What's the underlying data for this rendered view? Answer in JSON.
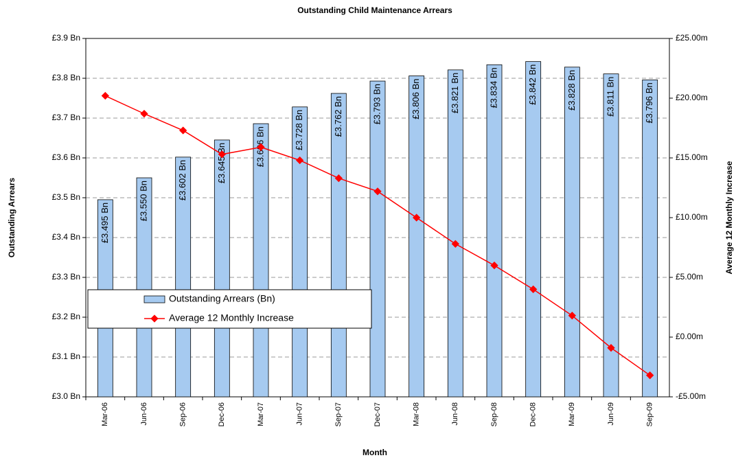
{
  "chart_data": {
    "type": "bar_line",
    "title": "Outstanding Child Maintenance Arrears",
    "x_label": "Month",
    "y_label": "Outstanding Arrears",
    "y2_label": "Average 12 Monthly Increase",
    "categories": [
      "Mar-06",
      "Jun-06",
      "Sep-06",
      "Dec-06",
      "Mar-07",
      "Jun-07",
      "Sep-07",
      "Dec-07",
      "Mar-08",
      "Jun-08",
      "Sep-08",
      "Dec-08",
      "Mar-09",
      "Jun-09",
      "Sep-09"
    ],
    "series": [
      {
        "name": "Outstanding Arrears (Bn)",
        "type": "bar",
        "color": "#a6caf0",
        "values": [
          3.495,
          3.55,
          3.602,
          3.645,
          3.686,
          3.728,
          3.762,
          3.793,
          3.806,
          3.821,
          3.834,
          3.842,
          3.828,
          3.811,
          3.796
        ],
        "value_labels": [
          "£3.495 Bn",
          "£3.550 Bn",
          "£3.602 Bn",
          "£3.645 Bn",
          "£3.686 Bn",
          "£3.728 Bn",
          "£3.762 Bn",
          "£3.793 Bn",
          "£3.806 Bn",
          "£3.821 Bn",
          "£3.834 Bn",
          "£3.842 Bn",
          "£3.828 Bn",
          "£3.811 Bn",
          "£3.796 Bn"
        ]
      },
      {
        "name": "Average 12 Monthly Increase",
        "type": "line",
        "axis": "y2",
        "color": "#ff0000",
        "values": [
          20.2,
          18.7,
          17.3,
          15.3,
          15.9,
          14.8,
          13.3,
          12.2,
          10.0,
          7.8,
          6.0,
          4.0,
          1.8,
          -0.9,
          -3.2
        ]
      }
    ],
    "ylim": [
      3.0,
      3.9
    ],
    "yticks": [
      {
        "value": 3.0,
        "label": "£3.0 Bn"
      },
      {
        "value": 3.1,
        "label": "£3.1 Bn"
      },
      {
        "value": 3.2,
        "label": "£3.2 Bn"
      },
      {
        "value": 3.3,
        "label": "£3.3 Bn"
      },
      {
        "value": 3.4,
        "label": "£3.4 Bn"
      },
      {
        "value": 3.5,
        "label": "£3.5 Bn"
      },
      {
        "value": 3.6,
        "label": "£3.6 Bn"
      },
      {
        "value": 3.7,
        "label": "£3.7 Bn"
      },
      {
        "value": 3.8,
        "label": "£3.8 Bn"
      },
      {
        "value": 3.9,
        "label": "£3.9 Bn"
      }
    ],
    "y2lim": [
      -5,
      25
    ],
    "y2ticks": [
      {
        "value": -5,
        "label": "-£5.00m"
      },
      {
        "value": 0,
        "label": "£0.00m"
      },
      {
        "value": 5,
        "label": "£5.00m"
      },
      {
        "value": 10,
        "label": "£10.00m"
      },
      {
        "value": 15,
        "label": "£15.00m"
      },
      {
        "value": 20,
        "label": "£20.00m"
      },
      {
        "value": 25,
        "label": "£25.00m"
      }
    ],
    "grid": true,
    "legend": "left"
  }
}
